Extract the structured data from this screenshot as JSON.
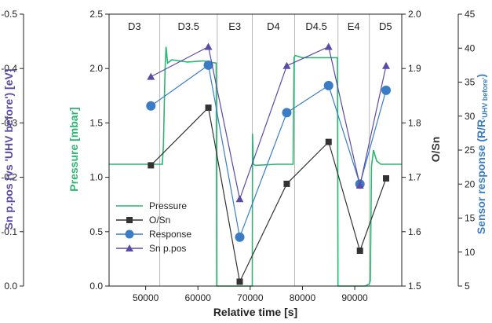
{
  "chart_data": {
    "type": "line",
    "xlabel": "Relative time [s]",
    "xlim": [
      43000,
      99000
    ],
    "xticks": [
      50000,
      60000,
      70000,
      80000,
      90000
    ],
    "y_left_outer": {
      "label": "Sn p.pos (vs 'UHV before') [eV]",
      "lim": [
        0.0,
        -0.5
      ],
      "ticks": [
        "-0.5",
        "-0.4",
        "-0.3",
        "-0.2",
        "-0.1",
        "0.0"
      ],
      "color": "#5b4aa6"
    },
    "y_left_inner": {
      "label": "Pressure [mbar]",
      "lim": [
        0.0,
        2.5
      ],
      "ticks": [
        "0.0",
        "0.5",
        "1.0",
        "1.5",
        "2.0",
        "2.5"
      ],
      "color": "#2bb673"
    },
    "y_right_inner": {
      "label": "O/Sn",
      "lim": [
        1.5,
        2.0
      ],
      "ticks": [
        "1.5",
        "1.6",
        "1.7",
        "1.8",
        "1.9",
        "2.0"
      ],
      "color": "#333333"
    },
    "y_right_outer": {
      "label_main": "Sensor response (R/R",
      "label_sub": "'UHV before'",
      "label_close": ")",
      "lim": [
        5,
        45
      ],
      "ticks": [
        "5",
        "10",
        "15",
        "20",
        "25",
        "30",
        "35",
        "40",
        "45"
      ],
      "color": "#3b7dc4"
    },
    "phases": [
      {
        "label": "D3",
        "start": 43000,
        "end": 52700
      },
      {
        "label": "D3.5",
        "start": 52700,
        "end": 63700
      },
      {
        "label": "E3",
        "start": 63700,
        "end": 70400
      },
      {
        "label": "D4",
        "start": 70400,
        "end": 78500
      },
      {
        "label": "D4.5",
        "start": 78500,
        "end": 86800
      },
      {
        "label": "E4",
        "start": 86800,
        "end": 92800
      },
      {
        "label": "D5",
        "start": 92800,
        "end": 99000
      }
    ],
    "series": [
      {
        "name": "Pressure",
        "axis": "y_left_inner",
        "color": "#2bb673",
        "x": [
          43000,
          53200,
          53400,
          53700,
          53900,
          54200,
          55000,
          58000,
          61000,
          63500,
          63600,
          63700,
          68000,
          70300,
          70400,
          70450,
          70600,
          71000,
          75000,
          78200,
          78400,
          78600,
          80000,
          84000,
          86700,
          86800,
          87000,
          92000,
          92800,
          93000,
          93200,
          93600,
          94200,
          95000,
          97000,
          99000
        ],
        "y": [
          1.12,
          1.12,
          1.3,
          1.98,
          2.2,
          2.05,
          2.08,
          2.06,
          2.07,
          2.05,
          0.0,
          0.0,
          0.0,
          0.0,
          0.0,
          1.4,
          1.12,
          1.11,
          1.12,
          1.12,
          2.1,
          2.12,
          2.1,
          2.1,
          2.1,
          0.0,
          0.0,
          0.0,
          0.02,
          0.05,
          1.1,
          1.25,
          1.15,
          1.12,
          1.12,
          1.12
        ]
      },
      {
        "name": "O/Sn",
        "axis": "y_right_inner",
        "marker": "square",
        "color": "#333333",
        "x": [
          51000,
          62000,
          68000,
          77000,
          85000,
          91000,
          96000
        ],
        "y": [
          1.722,
          1.828,
          1.508,
          1.688,
          1.765,
          1.565,
          1.698
        ]
      },
      {
        "name": "Response",
        "axis": "y_right_outer",
        "marker": "circle",
        "color": "#3b7dc4",
        "x": [
          51000,
          62000,
          68000,
          77000,
          85000,
          91000,
          96000
        ],
        "y": [
          31.5,
          37.5,
          12.2,
          30.5,
          34.5,
          20.0,
          33.8
        ]
      },
      {
        "name": "Sn p.pos",
        "axis": "y_left_outer",
        "marker": "triangle",
        "color": "#5b4aa6",
        "x": [
          51000,
          62000,
          68000,
          77000,
          85000,
          91000,
          96000
        ],
        "y": [
          -0.385,
          -0.44,
          -0.16,
          -0.405,
          -0.44,
          -0.185,
          -0.405
        ]
      }
    ],
    "legend_position": "lower-left"
  }
}
